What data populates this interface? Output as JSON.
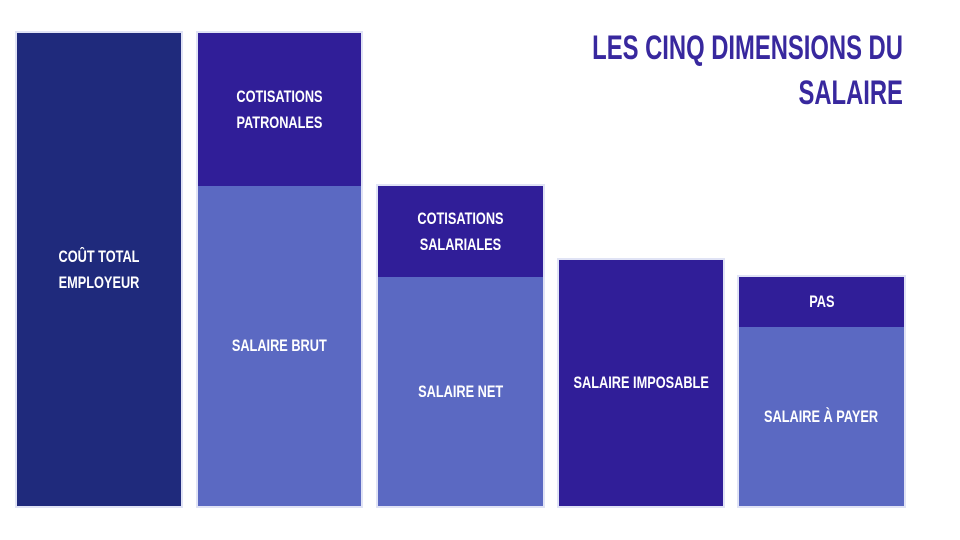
{
  "title": {
    "full_text": "LES CINQ DIMENSIONS DU SALAIRE",
    "lines": [
      "LES CINQ DIMENSIONS DU",
      "SALAIRE"
    ],
    "color": "#38289e"
  },
  "colors": {
    "background": "#ffffff",
    "navy": "#1f2a7c",
    "deep_purple": "#301e98",
    "periwinkle": "#5b69c2",
    "label_text": "#ffffff",
    "bar_outline": "#d7daf1"
  },
  "chart_data": {
    "type": "bar",
    "title": "LES CINQ DIMENSIONS DU SALAIRE",
    "orientation": "vertical",
    "axes": "none",
    "grid": false,
    "legend": "none",
    "unit": "percent of total employer cost, estimated from bar heights",
    "ylim": [
      0,
      100
    ],
    "bars": [
      {
        "name": "Coût total employeur",
        "total_pct": 100,
        "segments": [
          {
            "label": "COÛT TOTAL EMPLOYEUR",
            "label_lines": [
              "COÛT TOTAL",
              "EMPLOYEUR"
            ],
            "value_pct": 100,
            "color": "#1f2a7c"
          }
        ]
      },
      {
        "name": "Salaire brut + cotisations patronales",
        "total_pct": 100,
        "segments": [
          {
            "label": "COTISATIONS PATRONALES",
            "label_lines": [
              "COTISATIONS",
              "PATRONALES"
            ],
            "value_pct": 32,
            "color": "#301e98"
          },
          {
            "label": "SALAIRE BRUT",
            "label_lines": [
              "SALAIRE BRUT"
            ],
            "value_pct": 68,
            "color": "#5b69c2"
          }
        ]
      },
      {
        "name": "Salaire net + cotisations salariales",
        "total_pct": 68,
        "segments": [
          {
            "label": "COTISATIONS SALARIALES",
            "label_lines": [
              "COTISATIONS",
              "SALARIALES"
            ],
            "value_pct": 19,
            "color": "#301e98"
          },
          {
            "label": "SALAIRE NET",
            "label_lines": [
              "SALAIRE NET"
            ],
            "value_pct": 48,
            "color": "#5b69c2"
          }
        ]
      },
      {
        "name": "Salaire imposable",
        "total_pct": 52,
        "segments": [
          {
            "label": "SALAIRE IMPOSABLE",
            "label_lines": [
              "SALAIRE IMPOSABLE"
            ],
            "value_pct": 52,
            "color": "#301e98"
          }
        ]
      },
      {
        "name": "Salaire à payer + PAS",
        "total_pct": 48,
        "segments": [
          {
            "label": "PAS",
            "label_lines": [
              "PAS"
            ],
            "value_pct": 11,
            "color": "#301e98"
          },
          {
            "label": "SALAIRE À PAYER",
            "label_lines": [
              "SALAIRE À PAYER"
            ],
            "value_pct": 38,
            "color": "#5b69c2"
          }
        ]
      }
    ]
  }
}
